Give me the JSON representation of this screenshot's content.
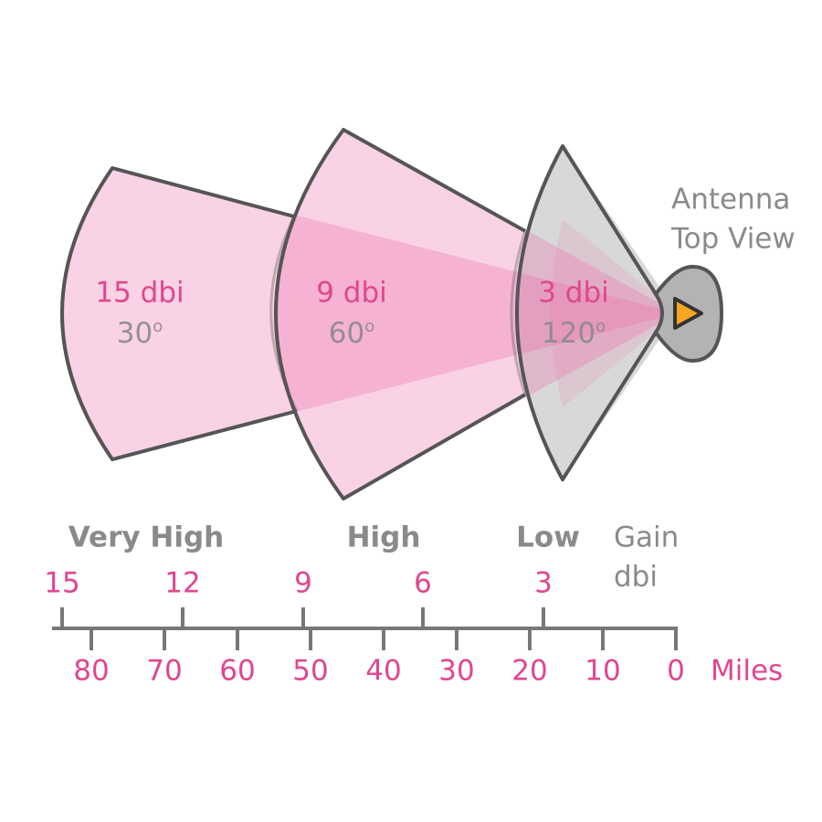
{
  "antenna": {
    "title_lines": [
      "Antenna",
      "Top View"
    ]
  },
  "sectors": [
    {
      "gain": "15 dbi",
      "angle": "30",
      "angle_unit": "o"
    },
    {
      "gain": "9 dbi",
      "angle": "60",
      "angle_unit": "o"
    },
    {
      "gain": "3 dbi",
      "angle": "120",
      "angle_unit": "o"
    }
  ],
  "gain_levels": [
    "Very High",
    "High",
    "Low"
  ],
  "gain_axis_label": [
    "Gain",
    "dbi"
  ],
  "dbi_ticks": [
    "15",
    "12",
    "9",
    "6",
    "3"
  ],
  "mile_ticks": [
    "80",
    "70",
    "60",
    "50",
    "40",
    "30",
    "20",
    "10",
    "0"
  ],
  "miles_label": "Miles"
}
